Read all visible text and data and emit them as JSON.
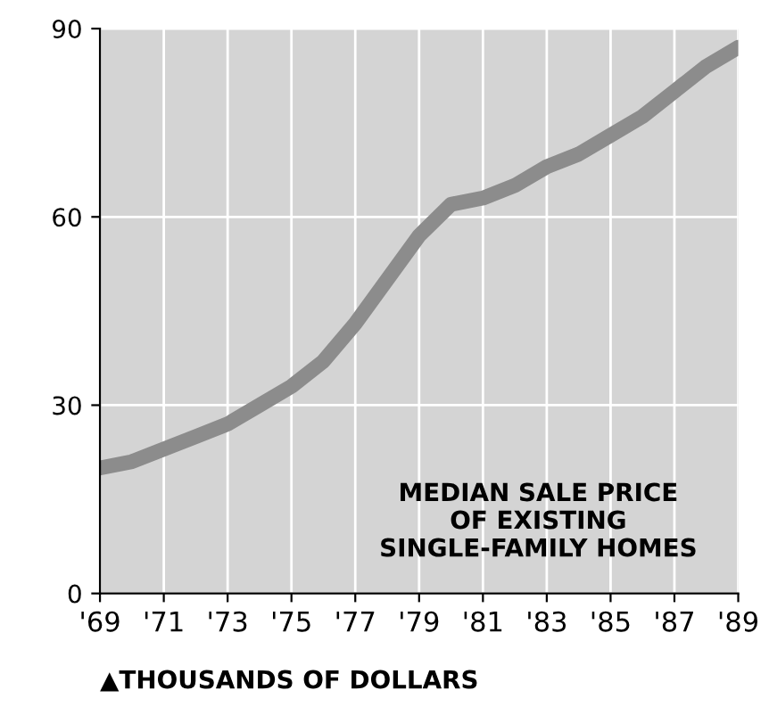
{
  "chart_data": {
    "type": "line",
    "x": [
      1969,
      1970,
      1971,
      1972,
      1973,
      1974,
      1975,
      1976,
      1977,
      1978,
      1979,
      1980,
      1981,
      1982,
      1983,
      1984,
      1985,
      1986,
      1987,
      1988,
      1989
    ],
    "series": [
      {
        "color": "#8c8c8c",
        "values": [
          20,
          21,
          23,
          25,
          27,
          30,
          33,
          37,
          43,
          50,
          57,
          62,
          63,
          65,
          68,
          70,
          73,
          76,
          80,
          84,
          87
        ]
      }
    ],
    "xlim": [
      1969,
      1989
    ],
    "ylim": [
      0,
      90
    ],
    "yticks": [
      0,
      30,
      60,
      90
    ],
    "xticks": [
      {
        "value": 1969,
        "label": "'69"
      },
      {
        "value": 1971,
        "label": "'71"
      },
      {
        "value": 1973,
        "label": "'73"
      },
      {
        "value": 1975,
        "label": "'75"
      },
      {
        "value": 1977,
        "label": "'77"
      },
      {
        "value": 1979,
        "label": "'79"
      },
      {
        "value": 1981,
        "label": "'81"
      },
      {
        "value": 1983,
        "label": "'83"
      },
      {
        "value": 1985,
        "label": "'85"
      },
      {
        "value": 1987,
        "label": "'87"
      },
      {
        "value": 1989,
        "label": "'89"
      }
    ],
    "grid": true,
    "marker": "none",
    "line_style": "solid",
    "annotations": [
      "MEDIAN SALE PRICE\nOF EXISTING\nSINGLE-FAMILY HOMES",
      "▲THOUSANDS OF DOLLARS"
    ]
  }
}
